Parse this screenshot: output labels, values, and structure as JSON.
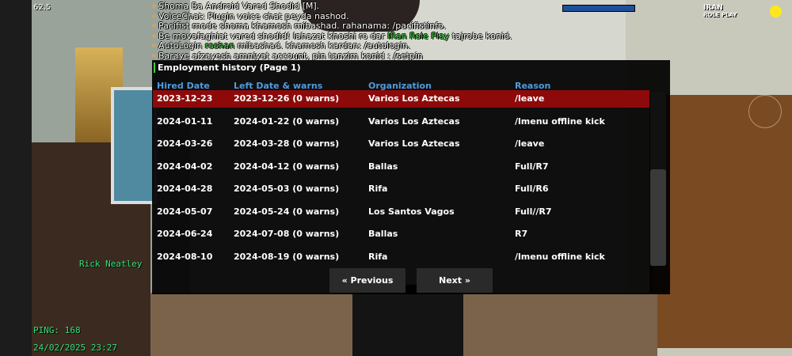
{
  "hud": {
    "fps": "62.5",
    "logo_top": "IRAN",
    "logo_bottom": "ROLE PLAY",
    "player_tag": "Rick Neatley",
    "ping": "PING: 168",
    "datetime": "24/02/2025 23:27"
  },
  "chat": [
    [
      {
        "text": "Shoma Ba Android Vared Shodid [M].",
        "color": "#ffffff"
      }
    ],
    [
      {
        "text": "VoiceChat: Plugin voice chat peyda nashod.",
        "color": "#ffffff"
      }
    ],
    [
      {
        "text": "Pacifist mode shoma khamosh mibashad. rahanama: /pacifistinfo.",
        "color": "#ffffff"
      }
    ],
    [
      {
        "text": "Be movafaghiat vared shodid! lahazat khoshi ro dar ",
        "color": "#ffffff"
      },
      {
        "text": "IRan Role Play",
        "color": "#3fd13f"
      },
      {
        "text": " tajrobe konid.",
        "color": "#ffffff"
      }
    ],
    [
      {
        "text": "AutoLogin ",
        "color": "#ffffff"
      },
      {
        "text": "roshan",
        "color": "#3fd13f"
      },
      {
        "text": " mibashad. khamosh kardan: /autologin.",
        "color": "#ffffff"
      }
    ],
    [
      {
        "text": "Baraye afzayesh amniyat account, pin tanzim konid : /setpin",
        "color": "#ffffff"
      }
    ]
  ],
  "dialog": {
    "title": "Employment history (Page 1)",
    "headers": [
      "Hired Date",
      "Left Date & warns",
      "Organization",
      "Reason"
    ],
    "selected_row": 0,
    "rows": [
      [
        "2023-12-23",
        "2023-12-26 (0 warns)",
        "Varios Los Aztecas",
        "/leave"
      ],
      [
        "2024-01-11",
        "2024-01-22 (0 warns)",
        "Varios Los Aztecas",
        "/lmenu offline kick"
      ],
      [
        "2024-03-26",
        "2024-03-28 (0 warns)",
        "Varios Los Aztecas",
        "/leave"
      ],
      [
        "2024-04-02",
        "2024-04-12 (0 warns)",
        "Ballas",
        "Full/R7"
      ],
      [
        "2024-04-28",
        "2024-05-03 (0 warns)",
        "Rifa",
        "Full/R6"
      ],
      [
        "2024-05-07",
        "2024-05-24 (0 warns)",
        "Los Santos Vagos",
        "Full//R7"
      ],
      [
        "2024-06-24",
        "2024-07-08 (0 warns)",
        "Ballas",
        "R7"
      ],
      [
        "2024-08-10",
        "2024-08-19 (0 warns)",
        "Rifa",
        "/lmenu offline kick"
      ]
    ],
    "buttons": [
      "« Previous",
      "Next »"
    ]
  }
}
